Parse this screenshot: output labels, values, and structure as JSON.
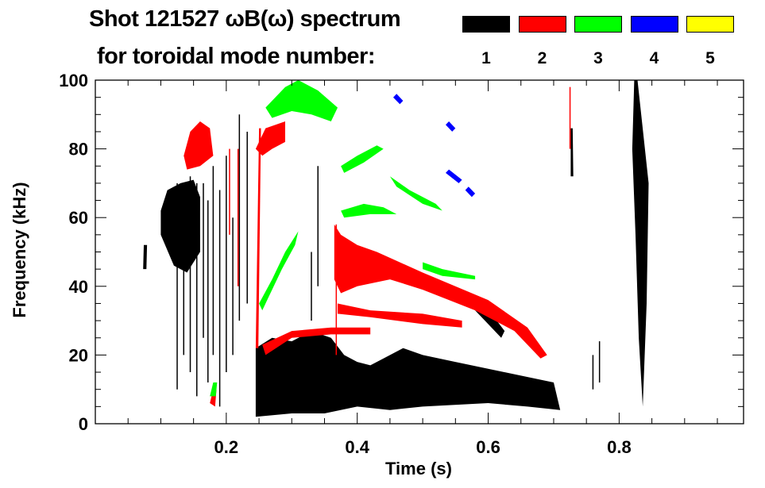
{
  "chart_data": {
    "type": "heatmap",
    "title": "Shot 121527 ωB(ω) spectrum",
    "subtitle": "for toroidal mode number:",
    "xlabel": "Time (s)",
    "ylabel": "Frequency (kHz)",
    "xlim": [
      0,
      0.99
    ],
    "ylim": [
      0,
      100
    ],
    "xticks": [
      0.2,
      0.4,
      0.6,
      0.8
    ],
    "xtick_labels": [
      "0.2",
      "0.4",
      "0.6",
      "0.8"
    ],
    "yticks": [
      0,
      20,
      40,
      60,
      80,
      100
    ],
    "ytick_labels": [
      "0",
      "20",
      "40",
      "60",
      "80",
      "100"
    ],
    "legend": [
      {
        "label": "1",
        "color": "#000000"
      },
      {
        "label": "2",
        "color": "#ff0000"
      },
      {
        "label": "3",
        "color": "#00ff00"
      },
      {
        "label": "4",
        "color": "#0000ff"
      },
      {
        "label": "5",
        "color": "#ffff00"
      }
    ],
    "legend_placement": "top-right",
    "regions": [
      {
        "mode": 1,
        "points": [
          [
            0.245,
            2
          ],
          [
            0.245,
            22
          ],
          [
            0.27,
            25
          ],
          [
            0.3,
            24
          ],
          [
            0.33,
            27
          ],
          [
            0.36,
            25
          ],
          [
            0.38,
            20
          ],
          [
            0.4,
            18
          ],
          [
            0.42,
            17
          ],
          [
            0.44,
            19
          ],
          [
            0.47,
            22
          ],
          [
            0.5,
            20
          ],
          [
            0.55,
            18
          ],
          [
            0.6,
            16
          ],
          [
            0.65,
            14
          ],
          [
            0.7,
            12
          ],
          [
            0.71,
            4
          ],
          [
            0.66,
            5
          ],
          [
            0.6,
            6
          ],
          [
            0.5,
            5
          ],
          [
            0.45,
            4
          ],
          [
            0.4,
            5
          ],
          [
            0.35,
            3
          ],
          [
            0.3,
            3
          ]
        ]
      },
      {
        "mode": 1,
        "points": [
          [
            0.1,
            62
          ],
          [
            0.11,
            68
          ],
          [
            0.13,
            70
          ],
          [
            0.15,
            71
          ],
          [
            0.16,
            66
          ],
          [
            0.16,
            50
          ],
          [
            0.14,
            44
          ],
          [
            0.12,
            46
          ],
          [
            0.1,
            55
          ]
        ]
      },
      {
        "mode": 1,
        "points": [
          [
            0.575,
            34
          ],
          [
            0.6,
            29
          ],
          [
            0.62,
            25
          ],
          [
            0.625,
            27
          ],
          [
            0.605,
            32
          ],
          [
            0.58,
            36
          ]
        ]
      },
      {
        "mode": 1,
        "points": [
          [
            0.823,
            100
          ],
          [
            0.828,
            100
          ],
          [
            0.845,
            70
          ],
          [
            0.842,
            35
          ],
          [
            0.836,
            5
          ],
          [
            0.83,
            25
          ],
          [
            0.825,
            55
          ],
          [
            0.82,
            80
          ]
        ]
      },
      {
        "mode": 1,
        "points": [
          [
            0.726,
            72
          ],
          [
            0.73,
            72
          ],
          [
            0.729,
            86
          ],
          [
            0.726,
            86
          ]
        ]
      },
      {
        "mode": 1,
        "points": [
          [
            0.073,
            45
          ],
          [
            0.078,
            45
          ],
          [
            0.079,
            52
          ],
          [
            0.074,
            52
          ]
        ]
      },
      {
        "mode": 2,
        "points": [
          [
            0.135,
            78
          ],
          [
            0.145,
            85
          ],
          [
            0.16,
            88
          ],
          [
            0.175,
            86
          ],
          [
            0.18,
            78
          ],
          [
            0.16,
            75
          ],
          [
            0.14,
            74
          ]
        ]
      },
      {
        "mode": 2,
        "points": [
          [
            0.245,
            80
          ],
          [
            0.26,
            86
          ],
          [
            0.29,
            88
          ],
          [
            0.29,
            82
          ],
          [
            0.27,
            80
          ],
          [
            0.255,
            78
          ]
        ]
      },
      {
        "mode": 2,
        "points": [
          [
            0.245,
            22
          ],
          [
            0.25,
            86
          ],
          [
            0.253,
            86
          ],
          [
            0.249,
            22
          ]
        ]
      },
      {
        "mode": 2,
        "points": [
          [
            0.365,
            58
          ],
          [
            0.375,
            55
          ],
          [
            0.4,
            52
          ],
          [
            0.43,
            50
          ],
          [
            0.5,
            44
          ],
          [
            0.6,
            36
          ],
          [
            0.66,
            28
          ],
          [
            0.69,
            20
          ],
          [
            0.68,
            19
          ],
          [
            0.64,
            27
          ],
          [
            0.58,
            33
          ],
          [
            0.5,
            39
          ],
          [
            0.45,
            42
          ],
          [
            0.4,
            40
          ],
          [
            0.375,
            38
          ],
          [
            0.365,
            42
          ]
        ]
      },
      {
        "mode": 2,
        "points": [
          [
            0.37,
            35
          ],
          [
            0.42,
            33
          ],
          [
            0.5,
            32
          ],
          [
            0.56,
            30
          ],
          [
            0.56,
            28
          ],
          [
            0.5,
            29
          ],
          [
            0.42,
            31
          ],
          [
            0.37,
            32
          ]
        ]
      },
      {
        "mode": 2,
        "points": [
          [
            0.255,
            23
          ],
          [
            0.3,
            27
          ],
          [
            0.36,
            28
          ],
          [
            0.42,
            28
          ],
          [
            0.42,
            26
          ],
          [
            0.36,
            26
          ],
          [
            0.3,
            25
          ],
          [
            0.26,
            20
          ]
        ]
      },
      {
        "mode": 2,
        "points": [
          [
            0.175,
            6
          ],
          [
            0.18,
            10
          ],
          [
            0.185,
            10
          ],
          [
            0.183,
            5
          ]
        ]
      },
      {
        "mode": 3,
        "points": [
          [
            0.26,
            92
          ],
          [
            0.29,
            98
          ],
          [
            0.31,
            100
          ],
          [
            0.34,
            97
          ],
          [
            0.37,
            92
          ],
          [
            0.36,
            88
          ],
          [
            0.33,
            90
          ],
          [
            0.3,
            91
          ],
          [
            0.27,
            89
          ]
        ]
      },
      {
        "mode": 3,
        "points": [
          [
            0.375,
            75
          ],
          [
            0.4,
            78
          ],
          [
            0.43,
            81
          ],
          [
            0.44,
            80
          ],
          [
            0.41,
            76
          ],
          [
            0.38,
            73
          ]
        ]
      },
      {
        "mode": 3,
        "points": [
          [
            0.375,
            62
          ],
          [
            0.41,
            64
          ],
          [
            0.44,
            63
          ],
          [
            0.46,
            61
          ],
          [
            0.42,
            61
          ],
          [
            0.38,
            60
          ]
        ]
      },
      {
        "mode": 3,
        "points": [
          [
            0.45,
            72
          ],
          [
            0.48,
            68
          ],
          [
            0.52,
            64
          ],
          [
            0.53,
            62
          ],
          [
            0.5,
            64
          ],
          [
            0.46,
            69
          ]
        ]
      },
      {
        "mode": 3,
        "points": [
          [
            0.25,
            35
          ],
          [
            0.27,
            42
          ],
          [
            0.29,
            50
          ],
          [
            0.31,
            56
          ],
          [
            0.305,
            52
          ],
          [
            0.285,
            45
          ],
          [
            0.265,
            37
          ],
          [
            0.255,
            33
          ]
        ]
      },
      {
        "mode": 3,
        "points": [
          [
            0.5,
            47
          ],
          [
            0.53,
            45
          ],
          [
            0.58,
            43
          ],
          [
            0.58,
            42
          ],
          [
            0.53,
            43
          ],
          [
            0.5,
            45
          ]
        ]
      },
      {
        "mode": 3,
        "points": [
          [
            0.175,
            8
          ],
          [
            0.18,
            12
          ],
          [
            0.186,
            12
          ],
          [
            0.184,
            8
          ]
        ]
      },
      {
        "mode": 4,
        "points": [
          [
            0.46,
            96
          ],
          [
            0.47,
            94
          ],
          [
            0.465,
            93
          ],
          [
            0.455,
            95
          ]
        ]
      },
      {
        "mode": 4,
        "points": [
          [
            0.54,
            88
          ],
          [
            0.55,
            86
          ],
          [
            0.545,
            85
          ],
          [
            0.535,
            87
          ]
        ]
      },
      {
        "mode": 4,
        "points": [
          [
            0.54,
            74
          ],
          [
            0.56,
            71
          ],
          [
            0.555,
            70
          ],
          [
            0.535,
            73
          ]
        ]
      },
      {
        "mode": 4,
        "points": [
          [
            0.57,
            69
          ],
          [
            0.58,
            67
          ],
          [
            0.575,
            66
          ],
          [
            0.565,
            68
          ]
        ]
      }
    ],
    "streaks": [
      {
        "mode": 1,
        "t": 0.125,
        "f": [
          10,
          70
        ]
      },
      {
        "mode": 1,
        "t": 0.135,
        "f": [
          20,
          68
        ]
      },
      {
        "mode": 1,
        "t": 0.145,
        "f": [
          15,
          72
        ]
      },
      {
        "mode": 1,
        "t": 0.155,
        "f": [
          8,
          70
        ]
      },
      {
        "mode": 1,
        "t": 0.165,
        "f": [
          25,
          70
        ]
      },
      {
        "mode": 1,
        "t": 0.172,
        "f": [
          12,
          65
        ]
      },
      {
        "mode": 1,
        "t": 0.18,
        "f": [
          20,
          75
        ]
      },
      {
        "mode": 1,
        "t": 0.19,
        "f": [
          5,
          68
        ]
      },
      {
        "mode": 1,
        "t": 0.2,
        "f": [
          15,
          78
        ]
      },
      {
        "mode": 1,
        "t": 0.21,
        "f": [
          20,
          60
        ]
      },
      {
        "mode": 1,
        "t": 0.22,
        "f": [
          30,
          90
        ]
      },
      {
        "mode": 1,
        "t": 0.232,
        "f": [
          35,
          85
        ]
      },
      {
        "mode": 1,
        "t": 0.33,
        "f": [
          30,
          50
        ]
      },
      {
        "mode": 1,
        "t": 0.34,
        "f": [
          40,
          75
        ]
      },
      {
        "mode": 1,
        "t": 0.76,
        "f": [
          10,
          20
        ]
      },
      {
        "mode": 1,
        "t": 0.77,
        "f": [
          12,
          24
        ]
      },
      {
        "mode": 2,
        "t": 0.218,
        "f": [
          40,
          80
        ]
      },
      {
        "mode": 2,
        "t": 0.205,
        "f": [
          55,
          80
        ]
      },
      {
        "mode": 2,
        "t": 0.725,
        "f": [
          80,
          98
        ]
      },
      {
        "mode": 2,
        "t": 0.368,
        "f": [
          20,
          58
        ]
      }
    ]
  }
}
